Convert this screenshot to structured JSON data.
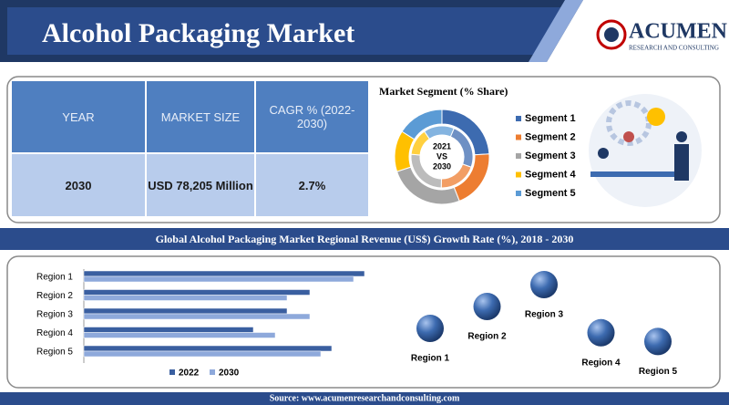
{
  "header": {
    "title": "Alcohol Packaging Market",
    "logo": "ACUMEN",
    "logo_sub": "RESEARCH AND CONSULTING"
  },
  "table": {
    "headers": [
      "YEAR",
      "MARKET SIZE",
      "CAGR % (2022-2030)"
    ],
    "rows": [
      [
        "2030",
        "USD 78,205 Million",
        "2.7%"
      ]
    ]
  },
  "chart_data": [
    {
      "type": "donut",
      "title": "Market Segment (% Share)",
      "center_label": [
        "2021",
        "VS",
        "2030"
      ],
      "categories": [
        "Segment 1",
        "Segment 2",
        "Segment 3",
        "Segment 4",
        "Segment 5"
      ],
      "values": [
        24,
        20,
        26,
        14,
        16
      ],
      "colors": [
        "#3d6bb0",
        "#ed7d31",
        "#a5a5a5",
        "#ffc000",
        "#5b9bd5"
      ]
    },
    {
      "type": "hbar",
      "title": "Global Alcohol Packaging Market Regional Revenue (US$) Growth Rate (%), 2018 - 2030",
      "categories": [
        "Region 1",
        "Region 2",
        "Region 3",
        "Region 4",
        "Region 5"
      ],
      "series": [
        {
          "name": "2022",
          "color": "#3a5fa0",
          "values": [
            308,
            248,
            223,
            186,
            272
          ]
        },
        {
          "name": "2030",
          "color": "#8ea9db",
          "values": [
            296,
            223,
            248,
            210,
            260
          ]
        }
      ],
      "xlim": [
        0,
        320
      ]
    },
    {
      "type": "bubble",
      "categories": [
        "Region 1",
        "Region 2",
        "Region 3",
        "Region 4",
        "Region 5"
      ],
      "values": [
        2.5,
        3.5,
        4.5,
        2.3,
        1.9
      ],
      "ylim": [
        0,
        5
      ],
      "color": "#3d6bb0"
    }
  ],
  "source": "Source: www.acumenresearchandconsulting.com"
}
